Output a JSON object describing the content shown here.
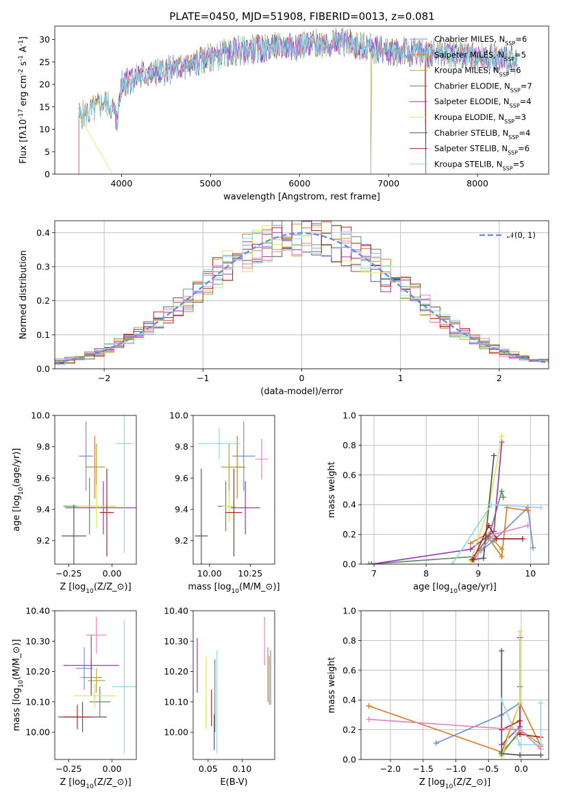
{
  "title": "PLATE=0450, MJD=51908, FIBERID=0013, z=0.081",
  "colors": {
    "Chabrier MILES": "#6a8fdc",
    "Salpeter MILES": "#e07b2a",
    "Kroupa MILES": "#b8a23a",
    "Chabrier ELODIE": "#5e8c5e",
    "Salpeter ELODIE": "#9b36b8",
    "Kroupa ELODIE": "#d8e85a",
    "Chabrier STELIB": "#555555",
    "Salpeter STELIB": "#b51e1e",
    "Kroupa STELIB": "#8fd8e8",
    "pink": "#e884c0",
    "normal": "#6a8fdc"
  },
  "chart_data": [
    {
      "id": "spectrum",
      "type": "line",
      "xlabel": "wavelength [Angstrom, rest frame]",
      "ylabel": "Flux [f$_\\lambda$10$^{-17}$ erg cm$^{-2}$ s$^{-1}$ A$^{-1}$]",
      "xlim": [
        3250,
        8800
      ],
      "ylim": [
        0,
        33
      ],
      "xticks": [
        4000,
        5000,
        6000,
        7000,
        8000
      ],
      "yticks": [
        0,
        5,
        10,
        15,
        20,
        25,
        30
      ],
      "legend_position": "right",
      "legend": [
        {
          "sup": "Chabrier MILES, N",
          "sub": "SSP",
          "tail": "=6"
        },
        {
          "sup": "Salpeter MILES, N",
          "sub": "SSP",
          "tail": "=5"
        },
        {
          "sup": "Kroupa MILES, N",
          "sub": "SSP",
          "tail": "=6"
        },
        {
          "sup": "Chabrier ELODIE, N",
          "sub": "SSP",
          "tail": "=7"
        },
        {
          "sup": "Salpeter ELODIE, N",
          "sub": "SSP",
          "tail": "=4"
        },
        {
          "sup": "Kroupa ELODIE, N",
          "sub": "SSP",
          "tail": "=3"
        },
        {
          "sup": "Chabrier STELIB, N",
          "sub": "SSP",
          "tail": "=4"
        },
        {
          "sup": "Salpeter STELIB, N",
          "sub": "SSP",
          "tail": "=6"
        },
        {
          "sup": "Kroupa STELIB, N",
          "sub": "SSP",
          "tail": "=5"
        }
      ],
      "continuum": [
        [
          3520,
          13
        ],
        [
          3600,
          13.5
        ],
        [
          3700,
          14.5
        ],
        [
          3800,
          16
        ],
        [
          3900,
          15
        ],
        [
          3950,
          12
        ],
        [
          4000,
          20
        ],
        [
          4200,
          22
        ],
        [
          4500,
          23
        ],
        [
          4800,
          24.5
        ],
        [
          5000,
          26
        ],
        [
          5300,
          27.5
        ],
        [
          5600,
          28
        ],
        [
          5900,
          28.5
        ],
        [
          6200,
          29
        ],
        [
          6500,
          29.5
        ],
        [
          6800,
          28
        ],
        [
          7000,
          27.5
        ],
        [
          7300,
          27
        ],
        [
          7600,
          27
        ],
        [
          7900,
          26.5
        ],
        [
          8200,
          26
        ],
        [
          8450,
          25
        ]
      ]
    },
    {
      "id": "residuals",
      "type": "histogram",
      "xlabel": "(data-model)/error",
      "ylabel": "Normed distribution",
      "xlim": [
        -2.5,
        2.5
      ],
      "ylim": [
        0,
        0.435
      ],
      "xticks": [
        -2,
        -1,
        0,
        1,
        2
      ],
      "yticks": [
        0.0,
        0.1,
        0.2,
        0.3,
        0.4
      ],
      "grid": true,
      "legend_position": "top-right",
      "gaussian_label": "𝒩(0, 1)"
    },
    {
      "id": "age-vs-Z",
      "type": "errorbar",
      "xlabel": "Z [log$_{10}$(Z/Z$_\\odot$)]",
      "ylabel": "age  [log$_{10}$(age/yr)]",
      "xlim": [
        -0.33,
        0.14
      ],
      "ylim": [
        9.05,
        10.0
      ],
      "xticks": [
        -0.25,
        0.0
      ],
      "yticks": [
        9.2,
        9.4,
        9.6,
        9.8,
        10.0
      ],
      "points": [
        {
          "model": "Chabrier MILES",
          "x": -0.15,
          "xerr": 0.04,
          "y": 9.74,
          "yerr": 0.22
        },
        {
          "model": "Salpeter MILES",
          "x": -0.1,
          "xerr": 0.05,
          "y": 9.67,
          "yerr": 0.2
        },
        {
          "model": "Kroupa MILES",
          "x": -0.09,
          "xerr": 0.05,
          "y": 9.67,
          "yerr": 0.15
        },
        {
          "model": "Chabrier ELODIE",
          "x": -0.13,
          "xerr": 0.15,
          "y": 9.42,
          "yerr": 0.18
        },
        {
          "model": "Salpeter ELODIE",
          "x": -0.05,
          "xerr": 0.22,
          "y": 9.41,
          "yerr": 0.17
        },
        {
          "model": "Kroupa ELODIE",
          "x": -0.09,
          "xerr": 0.11,
          "y": 9.42,
          "yerr": 0.14
        },
        {
          "model": "Chabrier STELIB",
          "x": -0.22,
          "xerr": 0.07,
          "y": 9.23,
          "yerr": 0.2
        },
        {
          "model": "Salpeter STELIB",
          "x": -0.03,
          "xerr": 0.04,
          "y": 9.38,
          "yerr": 0.28
        },
        {
          "model": "Kroupa STELIB",
          "x": 0.07,
          "xerr": 0.05,
          "y": 9.82,
          "yerr": 0.7
        }
      ]
    },
    {
      "id": "age-vs-mass",
      "type": "errorbar",
      "xlabel": "mass [log$_{10}$(M/M$_\\odot$)]",
      "xlim": [
        9.9,
        10.4
      ],
      "ylim": [
        9.05,
        10.0
      ],
      "xticks": [
        10.0,
        10.25
      ],
      "yticks": [
        9.2,
        9.4,
        9.6,
        9.8,
        10.0
      ],
      "points": [
        {
          "model": "Chabrier MILES",
          "x": 10.21,
          "xerr": 0.07,
          "y": 9.74,
          "yerr": 0.22
        },
        {
          "model": "Salpeter MILES",
          "x": 10.17,
          "xerr": 0.05,
          "y": 9.67,
          "yerr": 0.2
        },
        {
          "model": "Kroupa MILES",
          "x": 10.12,
          "xerr": 0.05,
          "y": 9.67,
          "yerr": 0.15
        },
        {
          "model": "Chabrier ELODIE",
          "x": 10.1,
          "xerr": 0.05,
          "y": 9.42,
          "yerr": 0.16
        },
        {
          "model": "Salpeter ELODIE",
          "x": 10.22,
          "xerr": 0.09,
          "y": 9.41,
          "yerr": 0.17
        },
        {
          "model": "Kroupa ELODIE",
          "x": 10.12,
          "xerr": 0.04,
          "y": 9.42,
          "yerr": 0.1
        },
        {
          "model": "Chabrier STELIB",
          "x": 9.95,
          "xerr": 0.04,
          "y": 9.23,
          "yerr": 0.43
        },
        {
          "model": "Salpeter STELIB",
          "x": 10.15,
          "xerr": 0.05,
          "y": 9.38,
          "yerr": 0.28
        },
        {
          "model": "Kroupa STELIB",
          "x": 10.06,
          "xerr": 0.13,
          "y": 9.82,
          "yerr": 0.1
        },
        {
          "model": "pink",
          "x": 10.32,
          "xerr": 0.04,
          "y": 9.72,
          "yerr": 0.13
        }
      ]
    },
    {
      "id": "massweight-vs-age",
      "type": "line",
      "xlabel": "age  [log$_{10}$(age/yr)]",
      "ylabel": "mass weight",
      "xlim": [
        6.75,
        10.35
      ],
      "ylim": [
        0,
        1.0
      ],
      "xticks": [
        7,
        8,
        9,
        10
      ],
      "yticks": [
        0.0,
        0.2,
        0.4,
        0.6,
        0.8,
        1.0
      ],
      "grid": true,
      "series": [
        {
          "model": "Chabrier MILES",
          "x": [
            9.05,
            9.3,
            9.95,
            10.05
          ],
          "y": [
            0.09,
            0.16,
            0.38,
            0.11
          ]
        },
        {
          "model": "Salpeter MILES",
          "x": [
            8.85,
            9.15,
            9.45,
            9.55,
            9.95
          ],
          "y": [
            0.14,
            0.2,
            0.05,
            0.38,
            0.36
          ]
        },
        {
          "model": "Kroupa MILES",
          "x": [
            8.92,
            9.2,
            9.45
          ],
          "y": [
            0.03,
            0.2,
            0.1
          ]
        },
        {
          "model": "Chabrier ELODIE",
          "x": [
            6.9,
            8.9,
            9.2,
            9.45,
            9.48
          ],
          "y": [
            0.0,
            0.05,
            0.18,
            0.49,
            0.45
          ]
        },
        {
          "model": "Salpeter ELODIE",
          "x": [
            6.95,
            8.85,
            9.3,
            9.45
          ],
          "y": [
            0.0,
            0.1,
            0.22,
            0.82
          ]
        },
        {
          "model": "Kroupa ELODIE",
          "x": [
            8.85,
            9.2,
            9.45
          ],
          "y": [
            0.02,
            0.38,
            0.86
          ]
        },
        {
          "model": "Chabrier STELIB",
          "x": [
            8.88,
            9.1,
            9.3
          ],
          "y": [
            0.03,
            0.04,
            0.73
          ]
        },
        {
          "model": "Salpeter STELIB",
          "x": [
            8.9,
            9.2,
            9.35,
            9.85
          ],
          "y": [
            0.03,
            0.26,
            0.17,
            0.17
          ]
        },
        {
          "model": "Kroupa STELIB",
          "x": [
            8.5,
            9.25,
            10.2
          ],
          "y": [
            0.0,
            0.4,
            0.38
          ]
        },
        {
          "model": "pink",
          "x": [
            8.95,
            9.3,
            9.95
          ],
          "y": [
            0.05,
            0.2,
            0.26
          ]
        }
      ]
    },
    {
      "id": "mass-vs-Z",
      "type": "errorbar",
      "xlabel": "Z [log$_{10}$(Z/Z$_\\odot$)]",
      "ylabel": "mass [log$_{10}$(M/M$_\\odot$)]",
      "xlim": [
        -0.33,
        0.14
      ],
      "ylim": [
        9.91,
        10.4
      ],
      "xticks": [
        -0.25,
        0.0
      ],
      "yticks": [
        10.0,
        10.1,
        10.2,
        10.3,
        10.4
      ],
      "points": [
        {
          "model": "Chabrier MILES",
          "x": -0.16,
          "xerr": 0.05,
          "y": 10.21,
          "yerr": 0.07
        },
        {
          "model": "Salpeter MILES",
          "x": -0.12,
          "xerr": 0.06,
          "y": 10.18,
          "yerr": 0.06
        },
        {
          "model": "Kroupa MILES",
          "x": -0.09,
          "xerr": 0.05,
          "y": 10.17,
          "yerr": 0.04
        },
        {
          "model": "Chabrier ELODIE",
          "x": -0.07,
          "xerr": 0.06,
          "y": 10.1,
          "yerr": 0.05
        },
        {
          "model": "Salpeter ELODIE",
          "x": -0.12,
          "xerr": 0.16,
          "y": 10.22,
          "yerr": 0.1
        },
        {
          "model": "Kroupa ELODIE",
          "x": -0.1,
          "xerr": 0.12,
          "y": 10.12,
          "yerr": 0.04
        },
        {
          "model": "Chabrier STELIB",
          "x": -0.17,
          "xerr": 0.14,
          "y": 10.05,
          "yerr": 0.05
        },
        {
          "model": "Salpeter STELIB",
          "x": -0.2,
          "xerr": 0.08,
          "y": 10.05,
          "yerr": 0.04
        },
        {
          "model": "Kroupa STELIB",
          "x": 0.07,
          "xerr": 0.07,
          "y": 10.15,
          "yerr": 0.22
        },
        {
          "model": "pink",
          "x": -0.09,
          "xerr": 0.06,
          "y": 10.32,
          "yerr": 0.06
        }
      ]
    },
    {
      "id": "mass-vs-EBV",
      "type": "errorbar",
      "xlabel": "E(B-V)",
      "xlim": [
        0.028,
        0.148
      ],
      "ylim": [
        9.91,
        10.4
      ],
      "xticks": [
        0.05,
        0.1
      ],
      "yticks": [
        10.0,
        10.1,
        10.2,
        10.3,
        10.4
      ],
      "points": [
        {
          "model": "Chabrier MILES",
          "x": 0.142,
          "y": 10.18,
          "yerr": 0.09
        },
        {
          "model": "Salpeter MILES",
          "x": 0.138,
          "y": 10.19,
          "yerr": 0.09
        },
        {
          "model": "Kroupa MILES",
          "x": 0.14,
          "y": 10.17,
          "yerr": 0.08
        },
        {
          "model": "Chabrier ELODIE",
          "x": 0.06,
          "y": 10.12,
          "yerr": 0.12
        },
        {
          "model": "Salpeter ELODIE",
          "x": 0.034,
          "y": 10.22,
          "yerr": 0.09
        },
        {
          "model": "Kroupa ELODIE",
          "x": 0.047,
          "y": 10.13,
          "yerr": 0.12
        },
        {
          "model": "Chabrier STELIB",
          "x": 0.059,
          "y": 10.0,
          "yerr": 0.06
        },
        {
          "model": "Salpeter STELIB",
          "x": 0.055,
          "y": 10.08,
          "yerr": 0.06
        },
        {
          "model": "Kroupa STELIB",
          "x": 0.063,
          "y": 10.1,
          "yerr": 0.17
        },
        {
          "model": "pink",
          "x": 0.133,
          "y": 10.3,
          "yerr": 0.08
        }
      ]
    },
    {
      "id": "massweight-vs-Z",
      "type": "line",
      "xlabel": "Z [log$_{10}$(Z/Z$_\\odot$)]",
      "ylabel": "mass weight",
      "xlim": [
        -2.45,
        0.42
      ],
      "ylim": [
        0,
        1.0
      ],
      "xticks": [
        -2.0,
        -1.5,
        -1.0,
        -0.5,
        0.0
      ],
      "yticks": [
        0.0,
        0.2,
        0.4,
        0.6,
        0.8,
        1.0
      ],
      "grid": true,
      "series": [
        {
          "model": "Chabrier MILES",
          "x": [
            -1.3,
            -0.3,
            -0.02
          ],
          "y": [
            0.11,
            0.3,
            0.38
          ]
        },
        {
          "model": "Salpeter MILES",
          "x": [
            -2.33,
            -0.3,
            -0.02,
            0.3
          ],
          "y": [
            0.36,
            0.05,
            0.38,
            0.09
          ]
        },
        {
          "model": "Kroupa MILES",
          "x": [
            -0.3,
            -0.02,
            0.3
          ],
          "y": [
            0.03,
            0.2,
            0.1
          ]
        },
        {
          "model": "Chabrier ELODIE",
          "x": [
            -0.3,
            -0.02,
            -0.02
          ],
          "y": [
            0.05,
            0.18,
            0.49
          ]
        },
        {
          "model": "Salpeter ELODIE",
          "x": [
            -0.3,
            -0.02,
            -0.02
          ],
          "y": [
            0.1,
            0.22,
            0.82
          ]
        },
        {
          "model": "Kroupa ELODIE",
          "x": [
            -0.3,
            -0.02,
            -0.02
          ],
          "y": [
            0.02,
            0.38,
            0.86
          ]
        },
        {
          "model": "Chabrier STELIB",
          "x": [
            -0.3,
            -0.3,
            -0.02,
            0.3
          ],
          "y": [
            0.73,
            0.04,
            0.03,
            0.03
          ]
        },
        {
          "model": "Salpeter STELIB",
          "x": [
            -0.3,
            -0.02,
            -0.02,
            0.3
          ],
          "y": [
            0.2,
            0.26,
            0.17,
            0.15
          ]
        },
        {
          "model": "Kroupa STELIB",
          "x": [
            -0.3,
            -0.02,
            0.3,
            0.3
          ],
          "y": [
            0.4,
            0.1,
            0.1,
            0.38
          ]
        },
        {
          "model": "pink",
          "x": [
            -2.33,
            -0.02,
            0.3
          ],
          "y": [
            0.27,
            0.2,
            0.07
          ]
        }
      ]
    }
  ]
}
